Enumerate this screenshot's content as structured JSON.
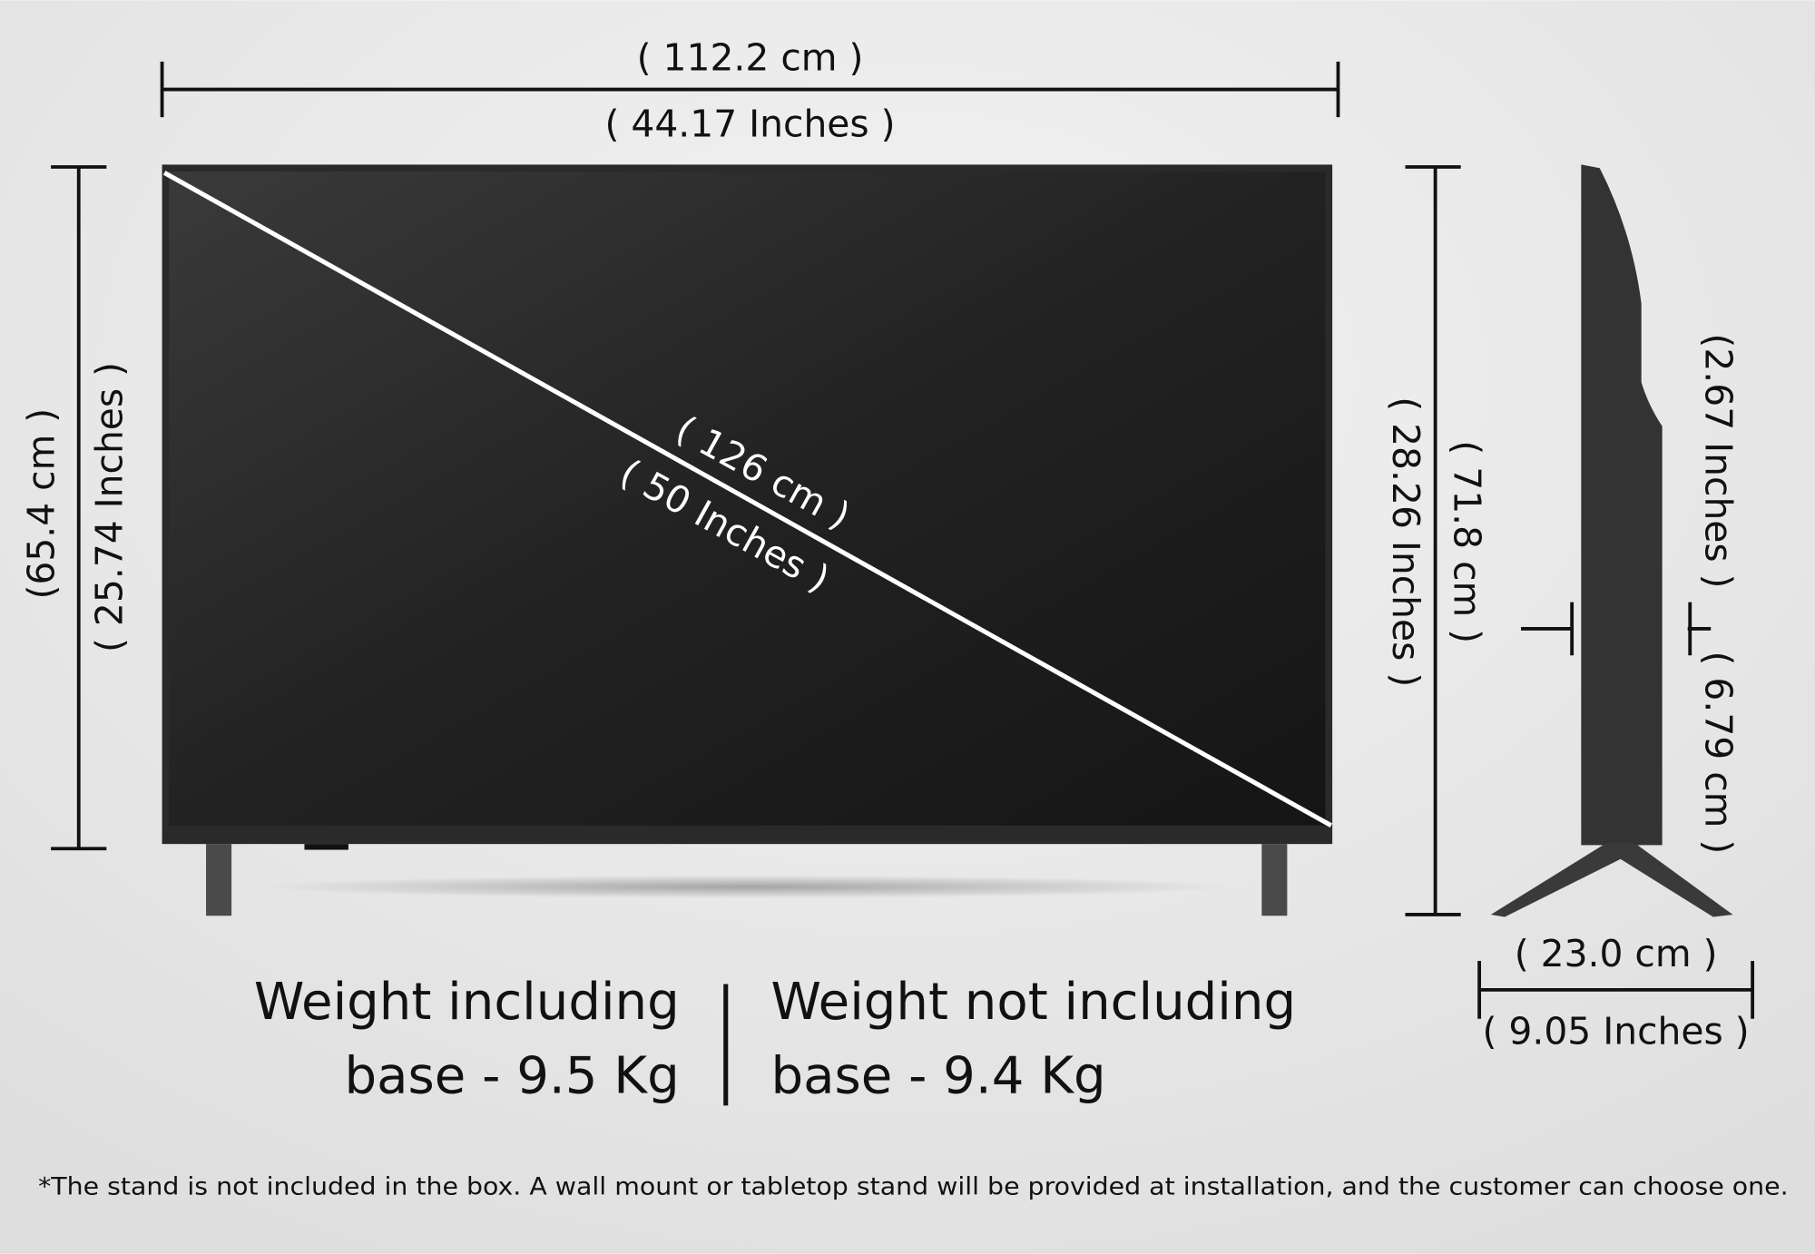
{
  "width": {
    "cm": "( 112.2 cm )",
    "inches": "( 44.17 Inches )"
  },
  "height": {
    "cm": "(65.4 cm )",
    "inches": "( 25.74 Inches )"
  },
  "diagonal": {
    "cm": "( 126 cm )",
    "inches": "( 50 Inches )"
  },
  "total_height": {
    "cm": "( 71.8 cm )",
    "inches": "( 28.26 Inches )"
  },
  "depth": {
    "inches": "(2.67 Inches )",
    "cm": "( 6.79 cm )"
  },
  "stand_depth": {
    "cm": "( 23.0 cm )",
    "inches": "( 9.05 Inches )"
  },
  "weight": {
    "with_base": [
      "Weight including",
      "base - 9.5 Kg"
    ],
    "without_base": [
      "Weight not including",
      "base - 9.4 Kg"
    ]
  },
  "footnote": "*The stand is not included in the box. A wall mount or tabletop stand will be provided at installation, and the customer can choose one."
}
